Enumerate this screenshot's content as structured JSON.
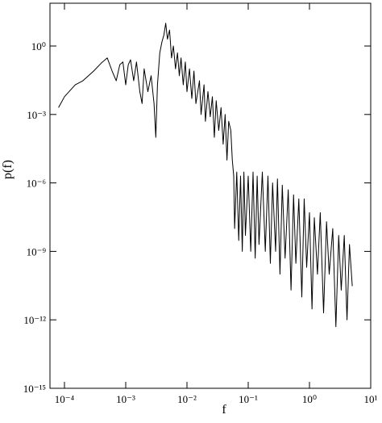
{
  "chart_data": {
    "type": "line",
    "xlabel": "f",
    "ylabel": "p(f)",
    "xscale": "log",
    "yscale": "log",
    "color": "#000000",
    "xlim": [
      5.8e-05,
      10
    ],
    "ylim": [
      1e-15,
      75
    ],
    "xticks": [
      {
        "value": 0.0001,
        "label": "10⁻⁴"
      },
      {
        "value": 0.001,
        "label": "10⁻³"
      },
      {
        "value": 0.01,
        "label": "10⁻²"
      },
      {
        "value": 0.1,
        "label": "10⁻¹"
      },
      {
        "value": 1,
        "label": "10⁰"
      },
      {
        "value": 10,
        "label": "10¹"
      }
    ],
    "yticks": [
      {
        "value": 1e-15,
        "label": "10⁻¹⁵"
      },
      {
        "value": 1e-12,
        "label": "10⁻¹²"
      },
      {
        "value": 1e-09,
        "label": "10⁻⁹"
      },
      {
        "value": 1e-06,
        "label": "10⁻⁶"
      },
      {
        "value": 0.001,
        "label": "10⁻³"
      },
      {
        "value": 1,
        "label": "10⁰"
      }
    ],
    "x": [
      8e-05,
      0.0001,
      0.00015,
      0.0002,
      0.0003,
      0.0004,
      0.0005,
      0.0006,
      0.0007,
      0.0008,
      0.0009,
      0.001,
      0.0011,
      0.0012,
      0.00135,
      0.0015,
      0.0017,
      0.00185,
      0.002,
      0.0023,
      0.0026,
      0.0029,
      0.0031,
      0.0033,
      0.0036,
      0.0039,
      0.0042,
      0.0045,
      0.0048,
      0.0052,
      0.0056,
      0.006,
      0.0065,
      0.007,
      0.0075,
      0.008,
      0.0087,
      0.0094,
      0.01,
      0.011,
      0.012,
      0.013,
      0.014,
      0.016,
      0.017,
      0.019,
      0.02,
      0.022,
      0.024,
      0.026,
      0.028,
      0.03,
      0.033,
      0.036,
      0.039,
      0.042,
      0.045,
      0.048,
      0.052,
      0.055,
      0.058,
      0.06,
      0.065,
      0.07,
      0.075,
      0.08,
      0.085,
      0.09,
      0.1,
      0.11,
      0.12,
      0.13,
      0.14,
      0.15,
      0.17,
      0.19,
      0.21,
      0.23,
      0.25,
      0.28,
      0.3,
      0.33,
      0.36,
      0.4,
      0.45,
      0.5,
      0.55,
      0.6,
      0.67,
      0.75,
      0.82,
      0.9,
      1,
      1.1,
      1.2,
      1.35,
      1.5,
      1.7,
      1.9,
      2.1,
      2.4,
      2.7,
      3,
      3.3,
      3.7,
      4.1,
      4.5,
      5
    ],
    "values": [
      0.002,
      0.006,
      0.02,
      0.03,
      0.08,
      0.18,
      0.3,
      0.08,
      0.03,
      0.15,
      0.2,
      0.02,
      0.15,
      0.25,
      0.03,
      0.2,
      0.01,
      0.003,
      0.1,
      0.01,
      0.05,
      0.003,
      0.0001,
      0.02,
      0.5,
      1.5,
      3,
      10,
      2,
      5,
      0.3,
      1,
      0.1,
      0.5,
      0.05,
      0.3,
      0.02,
      0.2,
      0.01,
      0.1,
      0.005,
      0.08,
      0.003,
      0.03,
      0.001,
      0.02,
      0.0005,
      0.01,
      0.0008,
      0.006,
      0.0001,
      0.004,
      0.0002,
      0.002,
      5e-05,
      0.001,
      1e-05,
      0.0005,
      0.0002,
      1e-05,
      2e-06,
      1e-08,
      3e-06,
      3e-09,
      2e-06,
      1e-09,
      3e-06,
      5e-09,
      2e-06,
      1e-09,
      3e-06,
      5e-10,
      2e-06,
      2e-09,
      3e-06,
      1e-09,
      2e-06,
      3e-10,
      1e-06,
      1e-09,
      1.5e-06,
      1e-10,
      8e-07,
      5e-10,
      5e-07,
      2e-11,
      3e-07,
      3e-10,
      2e-07,
      1e-11,
      2e-07,
      2e-10,
      5e-08,
      3e-12,
      3e-08,
      1e-10,
      5e-08,
      2e-12,
      2e-08,
      1e-10,
      1e-08,
      5e-13,
      5e-09,
      2e-11,
      5e-09,
      1e-12,
      2e-09,
      3e-11
    ]
  }
}
